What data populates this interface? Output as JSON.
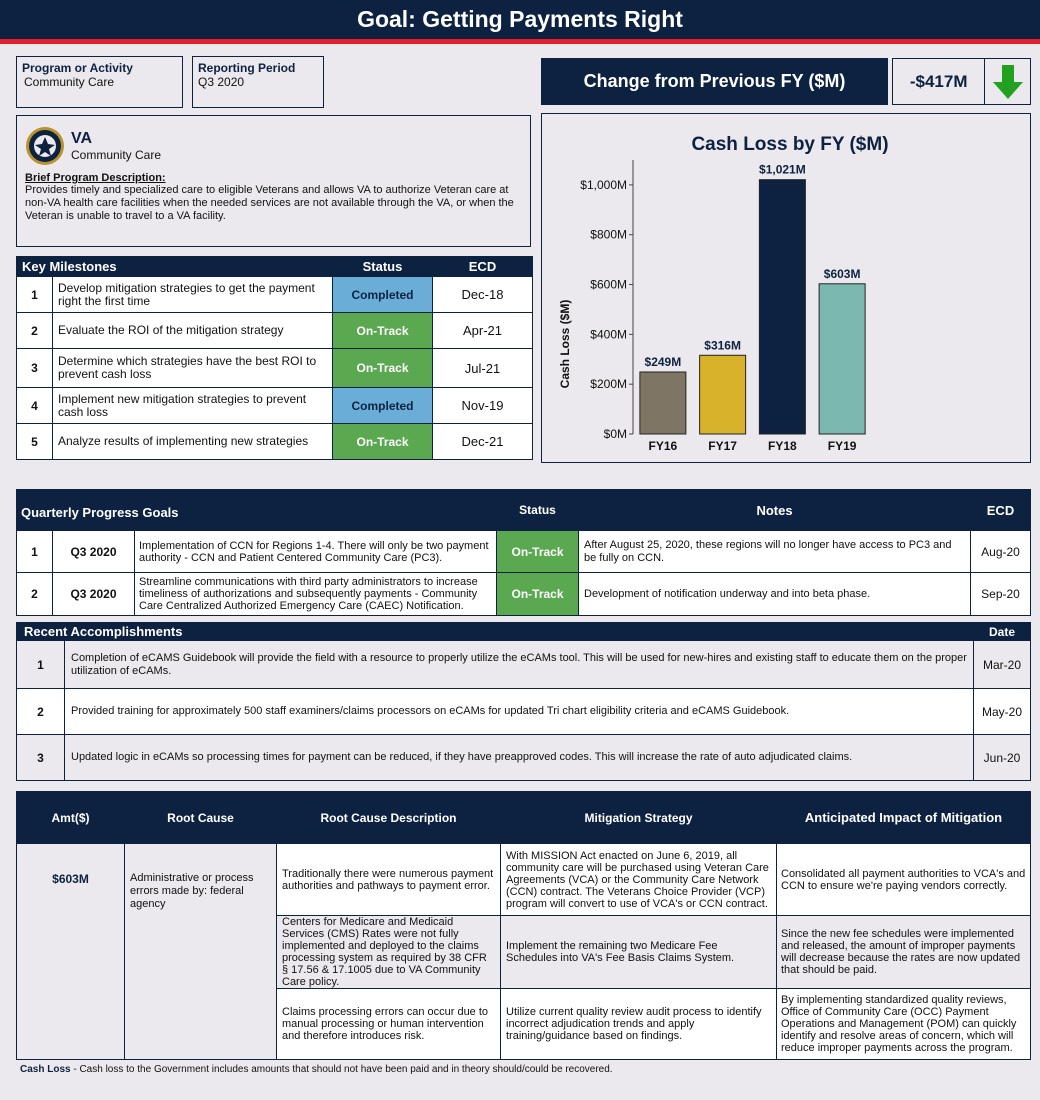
{
  "title": "Goal: Getting Payments Right",
  "program": {
    "label": "Program or Activity",
    "value": "Community Care"
  },
  "period": {
    "label": "Reporting Period",
    "value": "Q3 2020"
  },
  "change": {
    "label": "Change from Previous FY ($M)",
    "value": "-$417M",
    "arrow": "down-arrow-icon",
    "arrow_color": "#22a020"
  },
  "agency": {
    "name": "VA",
    "sub": "Community Care",
    "desc_label": "Brief Program Description:",
    "desc": "Provides timely and specialized care to eligible Veterans and allows VA to authorize Veteran care at non-VA health care facilities when the needed services are not available through the VA, or when the Veteran is unable to travel to a VA facility."
  },
  "milestones": {
    "headers": [
      "Key Milestones",
      "Status",
      "ECD"
    ],
    "rows": [
      {
        "num": "1",
        "text": "Develop mitigation strategies to get the payment right the first time",
        "status": "Completed",
        "ecd": "Dec-18"
      },
      {
        "num": "2",
        "text": "Evaluate the ROI of the mitigation strategy",
        "status": "On-Track",
        "ecd": "Apr-21"
      },
      {
        "num": "3",
        "text": "Determine which strategies have the best ROI to prevent cash loss",
        "status": "On-Track",
        "ecd": "Jul-21"
      },
      {
        "num": "4",
        "text": "Implement new mitigation strategies to prevent cash loss",
        "status": "Completed",
        "ecd": "Nov-19"
      },
      {
        "num": "5",
        "text": "Analyze results of implementing new strategies",
        "status": "On-Track",
        "ecd": "Dec-21"
      }
    ]
  },
  "chart_data": {
    "type": "bar",
    "title": "Cash Loss by FY ($M)",
    "ylabel": "Cash Loss ($M)",
    "categories": [
      "FY16",
      "FY17",
      "FY18",
      "FY19"
    ],
    "values": [
      249,
      316,
      1021,
      603
    ],
    "data_labels": [
      "$249M",
      "$316M",
      "$1,021M",
      "$603M"
    ],
    "colors": [
      "#7f7565",
      "#d8b22a",
      "#0c2240",
      "#7bb8b0"
    ],
    "ylim": [
      0,
      1100
    ],
    "yticks": [
      0,
      200,
      400,
      600,
      800,
      1000
    ],
    "ytick_labels": [
      "$0M",
      "$200M",
      "$400M",
      "$600M",
      "$800M",
      "$1,000M"
    ]
  },
  "quarterly": {
    "headers": [
      "Quarterly Progress Goals",
      "Status",
      "Notes",
      "ECD"
    ],
    "rows": [
      {
        "num": "1",
        "q": "Q3 2020",
        "text": "Implementation of CCN for Regions 1-4. There will only be two payment authority - CCN and Patient Centered Community Care (PC3).",
        "status": "On-Track",
        "notes": "After August 25, 2020, these regions will no longer have access to PC3 and be fully on CCN.",
        "ecd": "Aug-20"
      },
      {
        "num": "2",
        "q": "Q3 2020",
        "text": "Streamline communications with third party administrators  to increase timeliness of authorizations and subsequently payments - Community Care Centralized Authorized Emergency Care (CAEC) Notification.",
        "status": "On-Track",
        "notes": "Development of notification underway and into beta phase.",
        "ecd": "Sep-20"
      }
    ]
  },
  "accomplishments": {
    "headers": [
      "Recent  Accomplishments",
      "Date"
    ],
    "rows": [
      {
        "num": "1",
        "text": "Completion of eCAMS Guidebook will provide the field with a resource to properly utilize the eCAMs tool. This will be used for new-hires and existing staff to educate them on the proper utilization of eCAMs.",
        "date": "Mar-20"
      },
      {
        "num": "2",
        "text": "Provided training for approximately 500 staff examiners/claims processors on eCAMs for updated Tri chart eligibility criteria and eCAMS Guidebook.",
        "date": "May-20"
      },
      {
        "num": "3",
        "text": "Updated logic in eCAMs so processing times for payment can be reduced, if they have preapproved codes. This will increase the rate of auto adjudicated claims.",
        "date": "Jun-20"
      }
    ]
  },
  "root": {
    "headers": [
      "Amt($)",
      "Root Cause",
      "Root Cause Description",
      "Mitigation Strategy",
      "Anticipated Impact of Mitigation"
    ],
    "amt": "$603M",
    "cause": "Administrative or process errors made by: federal agency",
    "rows": [
      {
        "desc": "Traditionally there were numerous payment authorities and pathways to payment error.",
        "mit": "With MISSION Act enacted on June 6, 2019, all community care will be purchased using Veteran Care Agreements (VCA) or the Community Care Network (CCN) contract. The Veterans Choice Provider (VCP) program will convert to use of VCA's or CCN contract.",
        "impact": "Consolidated all payment authorities to VCA's and CCN to ensure we're paying vendors correctly."
      },
      {
        "desc": "Centers for Medicare and Medicaid Services (CMS) Rates were not fully implemented and deployed to the claims processing system as required by 38 CFR § 17.56 & 17.1005 due to VA Community Care policy.",
        "mit": "Implement the remaining two Medicare Fee Schedules into VA's Fee Basis Claims System.",
        "impact": "Since the new fee schedules were implemented and released, the amount of improper payments will decrease because the rates are now updated that should be paid."
      },
      {
        "desc": "Claims processing errors can occur due to manual processing or human intervention and therefore introduces risk.",
        "mit": "Utilize current quality review audit process to identify incorrect adjudication trends and apply training/guidance based on findings.",
        "impact": "By implementing standardized quality reviews, Office of Community Care (OCC) Payment Operations and Management (POM) can quickly identify and resolve areas of concern, which will reduce improper payments across the program."
      }
    ]
  },
  "footnote": {
    "term": "Cash Loss",
    "text": " - Cash loss to the Government includes amounts that should not have been paid and in theory should/could be recovered."
  }
}
